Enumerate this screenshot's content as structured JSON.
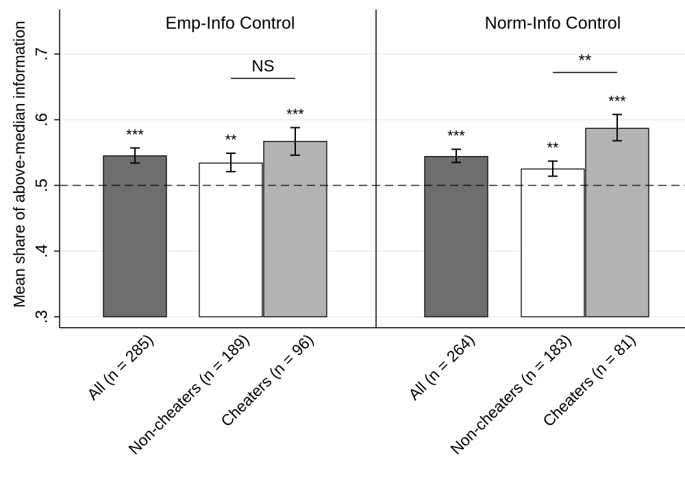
{
  "chart_data": {
    "type": "bar",
    "ylabel": "Mean share of above-median information",
    "ylim": [
      0.3,
      0.75
    ],
    "yticks": [
      {
        "value": 0.3,
        "label": ".3"
      },
      {
        "value": 0.4,
        "label": ".4"
      },
      {
        "value": 0.5,
        "label": ".5"
      },
      {
        "value": 0.6,
        "label": ".6"
      },
      {
        "value": 0.7,
        "label": ".7"
      }
    ],
    "reference_line": 0.5,
    "grid": true,
    "colors": {
      "All": "#6e6e6e",
      "Non-cheaters": "#ffffff",
      "Cheaters": "#b3b3b3"
    },
    "panels": [
      {
        "title": "Emp-Info Control",
        "bars": [
          {
            "group": "All",
            "label": "All (n = 285)",
            "value": 0.545,
            "ci_low": 0.534,
            "ci_high": 0.557,
            "stars": "***"
          },
          {
            "group": "Non-cheaters",
            "label": "Non-cheaters (n = 189)",
            "value": 0.534,
            "ci_low": 0.521,
            "ci_high": 0.549,
            "stars": "**"
          },
          {
            "group": "Cheaters",
            "label": "Cheaters (n = 96)",
            "value": 0.567,
            "ci_low": 0.546,
            "ci_high": 0.588,
            "stars": "***"
          }
        ],
        "comparison": {
          "from": 1,
          "to": 2,
          "value": 0.663,
          "label": "NS"
        }
      },
      {
        "title": "Norm-Info Control",
        "bars": [
          {
            "group": "All",
            "label": "All (n = 264)",
            "value": 0.544,
            "ci_low": 0.535,
            "ci_high": 0.555,
            "stars": "***"
          },
          {
            "group": "Non-cheaters",
            "label": "Non-cheaters (n = 183)",
            "value": 0.525,
            "ci_low": 0.514,
            "ci_high": 0.537,
            "stars": "**"
          },
          {
            "group": "Cheaters",
            "label": "Cheaters (n = 81)",
            "value": 0.587,
            "ci_low": 0.568,
            "ci_high": 0.608,
            "stars": "***"
          }
        ],
        "comparison": {
          "from": 1,
          "to": 2,
          "value": 0.672,
          "label": "**"
        }
      }
    ]
  }
}
